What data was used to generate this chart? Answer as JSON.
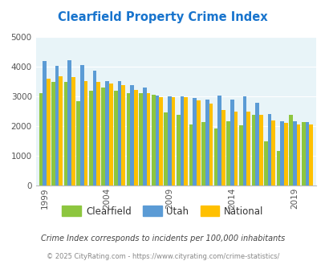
{
  "title": "Clearfield Property Crime Index",
  "title_color": "#1874cd",
  "background_color": "#e8f4f8",
  "plot_bg_color": "#e8f4f8",
  "years": [
    1999,
    2000,
    2001,
    2002,
    2003,
    2004,
    2005,
    2006,
    2007,
    2008,
    2009,
    2010,
    2011,
    2012,
    2013,
    2014,
    2015,
    2016,
    2017,
    2018,
    2019,
    2020
  ],
  "clearfield": [
    3100,
    3500,
    3500,
    2850,
    3200,
    3300,
    3200,
    3100,
    3100,
    3050,
    2460,
    2380,
    2060,
    2140,
    1930,
    2160,
    2030,
    2380,
    1480,
    1170,
    2380,
    2140
  ],
  "utah": [
    4200,
    4030,
    4220,
    4060,
    3870,
    3510,
    3510,
    3380,
    3310,
    3020,
    3010,
    2990,
    2960,
    2900,
    3040,
    2890,
    2990,
    2780,
    2420,
    2160,
    2160,
    2130
  ],
  "national": [
    3600,
    3680,
    3650,
    3510,
    3480,
    3440,
    3380,
    3230,
    3100,
    2980,
    2970,
    2970,
    2880,
    2760,
    2550,
    2500,
    2490,
    2380,
    2200,
    2110,
    2050,
    2050
  ],
  "clearfield_color": "#8dc63f",
  "utah_color": "#5b9bd5",
  "national_color": "#ffc000",
  "ylim": [
    0,
    5000
  ],
  "yticks": [
    0,
    1000,
    2000,
    3000,
    4000,
    5000
  ],
  "xlabel_years": [
    1999,
    2004,
    2009,
    2014,
    2019
  ],
  "footnote1": "Crime Index corresponds to incidents per 100,000 inhabitants",
  "footnote2": "© 2025 CityRating.com - https://www.cityrating.com/crime-statistics/",
  "footnote1_color": "#444444",
  "footnote2_color": "#888888",
  "legend_labels": [
    "Clearfield",
    "Utah",
    "National"
  ]
}
